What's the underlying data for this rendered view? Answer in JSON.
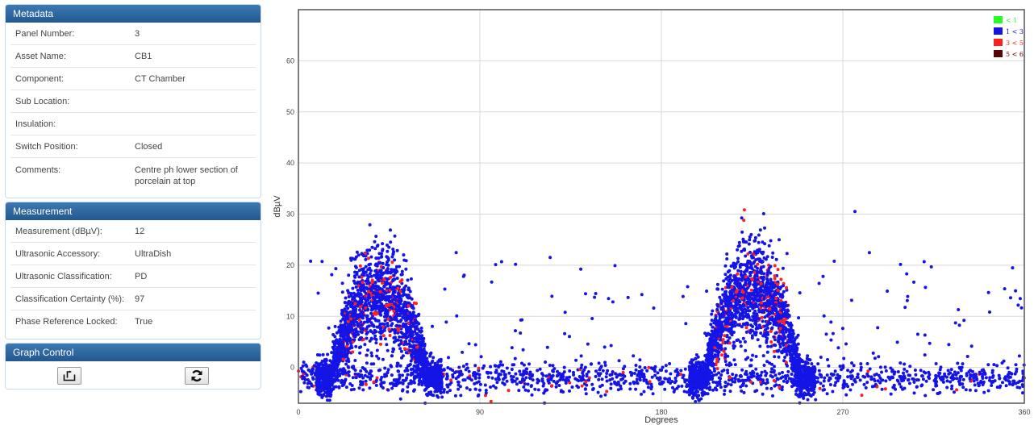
{
  "metadata": {
    "title": "Metadata",
    "rows": [
      {
        "label": "Panel Number:",
        "value": "3"
      },
      {
        "label": "Asset Name:",
        "value": "CB1"
      },
      {
        "label": "Component:",
        "value": "CT Chamber"
      },
      {
        "label": "Sub Location:",
        "value": ""
      },
      {
        "label": "Insulation:",
        "value": ""
      },
      {
        "label": "Switch Position:",
        "value": "Closed"
      },
      {
        "label": "Comments:",
        "value": "Centre ph lower section of porcelain at top"
      }
    ]
  },
  "measurement": {
    "title": "Measurement",
    "rows": [
      {
        "label": "Measurement (dBµV):",
        "value": "12"
      },
      {
        "label": "Ultrasonic Accessory:",
        "value": "UltraDish"
      },
      {
        "label": "Ultrasonic Classification:",
        "value": "PD"
      },
      {
        "label": "Classification Certainty (%):",
        "value": "97"
      },
      {
        "label": "Phase Reference Locked:",
        "value": "True"
      }
    ]
  },
  "graph_control": {
    "title": "Graph Control",
    "buttons": [
      {
        "icon": "export-icon"
      },
      {
        "icon": "refresh-icon"
      }
    ]
  },
  "chart_data": {
    "type": "scatter",
    "title": "",
    "xlabel": "Degrees",
    "ylabel": "dBµV",
    "xlim": [
      0,
      360
    ],
    "ylim": [
      -7,
      70
    ],
    "xticks": [
      0,
      90,
      180,
      270,
      360
    ],
    "yticks": [
      0,
      10,
      20,
      30,
      40,
      50,
      60
    ],
    "grid": true,
    "legend_placement": "top-right",
    "legend": [
      {
        "label": "< 1",
        "color": "#22ff22"
      },
      {
        "label": "1 < 3",
        "color": "#1414e6"
      },
      {
        "label": "3 < 5",
        "color": "#ff2020"
      },
      {
        "label": "5 < 6",
        "color": "#5a0505"
      }
    ],
    "clusters": [
      {
        "x_center": 40,
        "x_spread": 24,
        "y_center": 14,
        "y_spread": 5
      },
      {
        "x_center": 225,
        "x_spread": 24,
        "y_center": 15,
        "y_spread": 5
      }
    ],
    "baseline_level": -2,
    "y_max_observed": 30.5
  }
}
